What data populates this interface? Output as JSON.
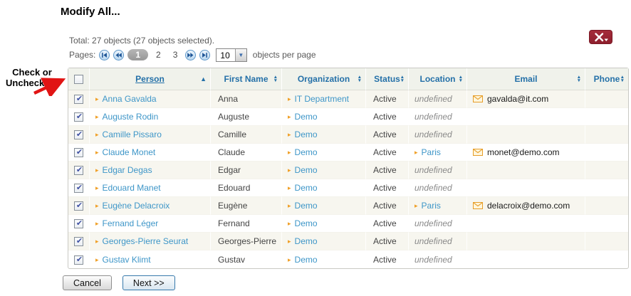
{
  "page_title": "Modify All...",
  "annotation": {
    "text": "Check or Uncheck All"
  },
  "toolbar": {
    "total_text": "Total: 27 objects (27 objects selected).",
    "tools_button_icon": "tools-menu-icon"
  },
  "pagination": {
    "label": "Pages:",
    "current_page": "1",
    "other_pages": [
      "2",
      "3"
    ],
    "per_page_value": "10",
    "per_page_label": "objects per page",
    "buttons": [
      "first-page",
      "previous-page",
      "next-page",
      "last-page"
    ]
  },
  "table": {
    "select_all_checked": false,
    "columns": [
      {
        "label": "Person",
        "sort": "asc"
      },
      {
        "label": "First Name",
        "sort": "both"
      },
      {
        "label": "Organization",
        "sort": "both"
      },
      {
        "label": "Status",
        "sort": "both"
      },
      {
        "label": "Location",
        "sort": "both"
      },
      {
        "label": "Email",
        "sort": "both"
      },
      {
        "label": "Phone",
        "sort": "both"
      }
    ],
    "rows": [
      {
        "checked": true,
        "person": "Anna Gavalda",
        "first_name": "Anna",
        "organization": "IT Department",
        "status": "Active",
        "location": "undefined",
        "email": "gavalda@it.com",
        "phone": ""
      },
      {
        "checked": true,
        "person": "Auguste Rodin",
        "first_name": "Auguste",
        "organization": "Demo",
        "status": "Active",
        "location": "undefined",
        "email": "",
        "phone": ""
      },
      {
        "checked": true,
        "person": "Camille Pissaro",
        "first_name": "Camille",
        "organization": "Demo",
        "status": "Active",
        "location": "undefined",
        "email": "",
        "phone": ""
      },
      {
        "checked": true,
        "person": "Claude Monet",
        "first_name": "Claude",
        "organization": "Demo",
        "status": "Active",
        "location": "Paris",
        "email": "monet@demo.com",
        "phone": ""
      },
      {
        "checked": true,
        "person": "Edgar Degas",
        "first_name": "Edgar",
        "organization": "Demo",
        "status": "Active",
        "location": "undefined",
        "email": "",
        "phone": ""
      },
      {
        "checked": true,
        "person": "Edouard Manet",
        "first_name": "Edouard",
        "organization": "Demo",
        "status": "Active",
        "location": "undefined",
        "email": "",
        "phone": ""
      },
      {
        "checked": true,
        "person": "Eugène Delacroix",
        "first_name": "Eugène",
        "organization": "Demo",
        "status": "Active",
        "location": "Paris",
        "email": "delacroix@demo.com",
        "phone": ""
      },
      {
        "checked": true,
        "person": "Fernand Léger",
        "first_name": "Fernand",
        "organization": "Demo",
        "status": "Active",
        "location": "undefined",
        "email": "",
        "phone": ""
      },
      {
        "checked": true,
        "person": "Georges-Pierre Seurat",
        "first_name": "Georges-Pierre",
        "organization": "Demo",
        "status": "Active",
        "location": "undefined",
        "email": "",
        "phone": ""
      },
      {
        "checked": true,
        "person": "Gustav Klimt",
        "first_name": "Gustav",
        "organization": "Demo",
        "status": "Active",
        "location": "undefined",
        "email": "",
        "phone": ""
      }
    ]
  },
  "footer": {
    "cancel_label": "Cancel",
    "next_label": "Next >>"
  },
  "colors": {
    "header_text_blue": "#2470a8",
    "link_blue": "#3e96c8",
    "bullet_orange": "#f0a028",
    "tools_button_red": "#9a2532",
    "row_alt_background": "#f7f6ef",
    "header_background": "#f0f2eb",
    "annotation_arrow_red": "#e11414"
  }
}
